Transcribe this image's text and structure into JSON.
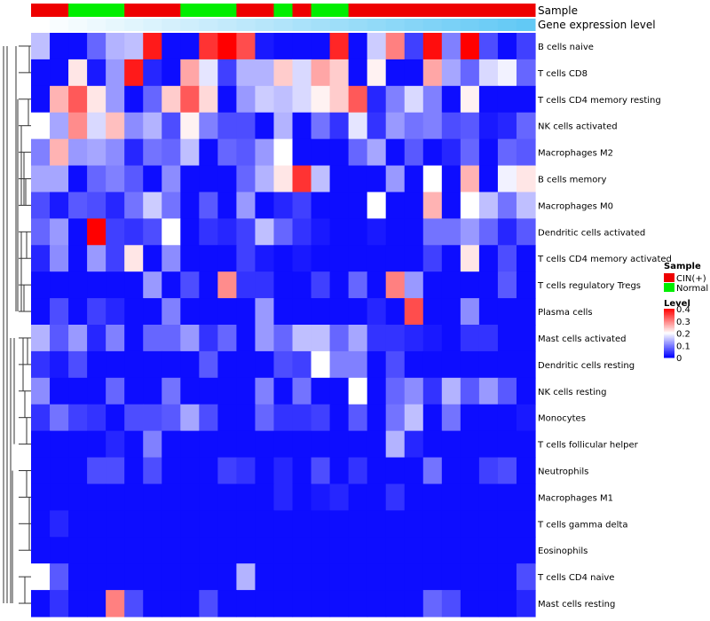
{
  "chart_data": {
    "type": "heatmap",
    "title": "",
    "annotation_tracks": [
      "Sample",
      "Gene expression level"
    ],
    "sample_groups": [
      "CIN(+)",
      "CIN(+)",
      "Normal",
      "Normal",
      "Normal",
      "CIN(+)",
      "CIN(+)",
      "CIN(+)",
      "Normal",
      "Normal",
      "Normal",
      "CIN(+)",
      "CIN(+)",
      "Normal",
      "CIN(+)",
      "Normal",
      "Normal",
      "CIN(+)",
      "CIN(+)",
      "CIN(+)",
      "CIN(+)",
      "CIN(+)",
      "CIN(+)",
      "CIN(+)",
      "CIN(+)",
      "CIN(+)",
      "CIN(+)"
    ],
    "gene_expression_level_gradient": [
      "#ffffff",
      "#62c9f5"
    ],
    "rows": [
      "B cells naive",
      "T cells CD8",
      "T cells CD4 memory resting",
      "NK cells activated",
      "Macrophages M2",
      "B cells memory",
      "Macrophages M0",
      "Dendritic cells activated",
      "T cells CD4 memory activated",
      "T cells regulatory  Tregs",
      "Plasma cells",
      "Mast cells activated",
      "Dendritic cells resting",
      "NK cells resting",
      "Monocytes",
      "T cells follicular helper",
      "Neutrophils",
      "Macrophages M1",
      "T cells gamma delta",
      "Eosinophils",
      "T cells CD4 naive",
      "Mast cells resting"
    ],
    "values": [
      [
        0.15,
        0.01,
        0.01,
        0.08,
        0.14,
        0.15,
        0.38,
        0.01,
        0.01,
        0.36,
        0.4,
        0.34,
        0.02,
        0.01,
        0.01,
        0.01,
        0.37,
        0.01,
        0.16,
        0.3,
        0.05,
        0.39,
        0.1,
        0.4,
        0.06,
        0.01,
        0.05
      ],
      [
        0.01,
        0.01,
        0.22,
        0.02,
        0.12,
        0.38,
        0.03,
        0.01,
        0.27,
        0.18,
        0.05,
        0.14,
        0.14,
        0.24,
        0.17,
        0.27,
        0.24,
        0.01,
        0.21,
        0.01,
        0.01,
        0.27,
        0.13,
        0.08,
        0.17,
        0.19,
        0.08
      ],
      [
        0.01,
        0.26,
        0.33,
        0.22,
        0.12,
        0.01,
        0.08,
        0.24,
        0.33,
        0.23,
        0.01,
        0.12,
        0.16,
        0.15,
        0.17,
        0.21,
        0.24,
        0.33,
        0.03,
        0.1,
        0.17,
        0.1,
        0.01,
        0.21,
        0.01,
        0.01,
        0.01
      ],
      [
        0.2,
        0.13,
        0.29,
        0.17,
        0.25,
        0.11,
        0.14,
        0.06,
        0.21,
        0.1,
        0.06,
        0.06,
        0.01,
        0.14,
        0.01,
        0.09,
        0.04,
        0.18,
        0.04,
        0.12,
        0.09,
        0.1,
        0.06,
        0.07,
        0.02,
        0.03,
        0.08
      ],
      [
        0.1,
        0.26,
        0.12,
        0.13,
        0.11,
        0.03,
        0.09,
        0.08,
        0.15,
        0.01,
        0.08,
        0.07,
        0.12,
        0.2,
        0.01,
        0.01,
        0.01,
        0.08,
        0.13,
        0.01,
        0.07,
        0.01,
        0.03,
        0.08,
        0.01,
        0.08,
        0.07
      ],
      [
        0.13,
        0.13,
        0.01,
        0.08,
        0.1,
        0.07,
        0.01,
        0.11,
        0.01,
        0.01,
        0.01,
        0.08,
        0.14,
        0.22,
        0.36,
        0.15,
        0.01,
        0.01,
        0.01,
        0.12,
        0.01,
        0.2,
        0.01,
        0.26,
        0.01,
        0.19,
        0.22
      ],
      [
        0.06,
        0.02,
        0.07,
        0.06,
        0.03,
        0.09,
        0.16,
        0.09,
        0.01,
        0.07,
        0.01,
        0.12,
        0.01,
        0.03,
        0.05,
        0.01,
        0.01,
        0.01,
        0.2,
        0.01,
        0.01,
        0.26,
        0.01,
        0.2,
        0.15,
        0.09,
        0.15
      ],
      [
        0.08,
        0.12,
        0.01,
        0.4,
        0.05,
        0.04,
        0.06,
        0.2,
        0.01,
        0.04,
        0.03,
        0.05,
        0.15,
        0.08,
        0.04,
        0.02,
        0.01,
        0.01,
        0.02,
        0.01,
        0.01,
        0.09,
        0.09,
        0.12,
        0.08,
        0.03,
        0.07
      ],
      [
        0.03,
        0.11,
        0.01,
        0.12,
        0.05,
        0.22,
        0.01,
        0.11,
        0.01,
        0.01,
        0.01,
        0.05,
        0.02,
        0.01,
        0.02,
        0.01,
        0.01,
        0.01,
        0.01,
        0.01,
        0.01,
        0.05,
        0.01,
        0.22,
        0.01,
        0.06,
        0.01
      ],
      [
        0.01,
        0.01,
        0.01,
        0.01,
        0.01,
        0.01,
        0.12,
        0.01,
        0.06,
        0.01,
        0.29,
        0.04,
        0.04,
        0.01,
        0.01,
        0.05,
        0.01,
        0.08,
        0.01,
        0.3,
        0.12,
        0.01,
        0.01,
        0.01,
        0.01,
        0.07,
        0.01
      ],
      [
        0.01,
        0.06,
        0.01,
        0.05,
        0.03,
        0.01,
        0.01,
        0.1,
        0.01,
        0.01,
        0.01,
        0.01,
        0.12,
        0.01,
        0.01,
        0.01,
        0.01,
        0.01,
        0.03,
        0.01,
        0.34,
        0.01,
        0.01,
        0.11,
        0.01,
        0.01,
        0.01
      ],
      [
        0.14,
        0.07,
        0.12,
        0.03,
        0.1,
        0.01,
        0.08,
        0.08,
        0.12,
        0.04,
        0.08,
        0.01,
        0.12,
        0.08,
        0.15,
        0.15,
        0.08,
        0.13,
        0.04,
        0.04,
        0.03,
        0.02,
        0.01,
        0.04,
        0.04,
        0.01,
        0.01
      ],
      [
        0.04,
        0.02,
        0.06,
        0.01,
        0.01,
        0.01,
        0.01,
        0.01,
        0.01,
        0.07,
        0.01,
        0.01,
        0.01,
        0.06,
        0.05,
        0.2,
        0.1,
        0.1,
        0.01,
        0.06,
        0.01,
        0.01,
        0.01,
        0.01,
        0.01,
        0.01,
        0.01
      ],
      [
        0.11,
        0.01,
        0.01,
        0.01,
        0.08,
        0.01,
        0.01,
        0.09,
        0.01,
        0.01,
        0.01,
        0.01,
        0.1,
        0.01,
        0.09,
        0.01,
        0.01,
        0.2,
        0.01,
        0.08,
        0.11,
        0.04,
        0.14,
        0.07,
        0.12,
        0.07,
        0.01
      ],
      [
        0.04,
        0.09,
        0.05,
        0.04,
        0.01,
        0.06,
        0.06,
        0.07,
        0.13,
        0.06,
        0.01,
        0.01,
        0.08,
        0.04,
        0.04,
        0.05,
        0.01,
        0.07,
        0.01,
        0.09,
        0.15,
        0.01,
        0.09,
        0.01,
        0.01,
        0.01,
        0.02
      ],
      [
        0.01,
        0.01,
        0.01,
        0.01,
        0.03,
        0.01,
        0.1,
        0.01,
        0.01,
        0.01,
        0.01,
        0.01,
        0.01,
        0.01,
        0.01,
        0.01,
        0.01,
        0.01,
        0.01,
        0.14,
        0.03,
        0.01,
        0.01,
        0.01,
        0.01,
        0.01,
        0.01
      ],
      [
        0.01,
        0.01,
        0.01,
        0.06,
        0.06,
        0.01,
        0.06,
        0.01,
        0.01,
        0.01,
        0.05,
        0.04,
        0.01,
        0.03,
        0.01,
        0.06,
        0.01,
        0.04,
        0.01,
        0.01,
        0.01,
        0.09,
        0.01,
        0.01,
        0.05,
        0.06,
        0.01
      ],
      [
        0.01,
        0.01,
        0.01,
        0.01,
        0.01,
        0.01,
        0.01,
        0.01,
        0.01,
        0.01,
        0.01,
        0.01,
        0.01,
        0.03,
        0.01,
        0.02,
        0.03,
        0.01,
        0.01,
        0.04,
        0.01,
        0.01,
        0.01,
        0.01,
        0.01,
        0.01,
        0.01
      ],
      [
        0.01,
        0.03,
        0.01,
        0.01,
        0.01,
        0.01,
        0.01,
        0.01,
        0.01,
        0.01,
        0.01,
        0.01,
        0.01,
        0.01,
        0.01,
        0.01,
        0.01,
        0.01,
        0.01,
        0.01,
        0.01,
        0.01,
        0.01,
        0.01,
        0.01,
        0.01,
        0.01
      ],
      [
        0.01,
        0.01,
        0.01,
        0.01,
        0.01,
        0.01,
        0.01,
        0.01,
        0.01,
        0.01,
        0.01,
        0.01,
        0.01,
        0.01,
        0.01,
        0.01,
        0.01,
        0.01,
        0.01,
        0.01,
        0.01,
        0.01,
        0.01,
        0.01,
        0.01,
        0.01,
        0.01
      ],
      [
        0.2,
        0.07,
        0.01,
        0.01,
        0.01,
        0.01,
        0.01,
        0.01,
        0.01,
        0.01,
        0.01,
        0.14,
        0.01,
        0.01,
        0.01,
        0.01,
        0.01,
        0.01,
        0.01,
        0.01,
        0.01,
        0.01,
        0.01,
        0.01,
        0.01,
        0.01,
        0.06
      ],
      [
        0.01,
        0.04,
        0.01,
        0.01,
        0.3,
        0.06,
        0.01,
        0.01,
        0.01,
        0.06,
        0.01,
        0.01,
        0.01,
        0.01,
        0.01,
        0.01,
        0.01,
        0.01,
        0.01,
        0.01,
        0.01,
        0.08,
        0.06,
        0.01,
        0.01,
        0.01,
        0.03
      ]
    ],
    "color_scale": {
      "min": 0,
      "max": 0.4,
      "colors": [
        "#0000ff",
        "#ffffff",
        "#ff0000"
      ]
    },
    "legend": {
      "sample_title": "Sample",
      "sample_items": [
        {
          "label": "CIN(+)",
          "color": "#ee0000"
        },
        {
          "label": "Normal",
          "color": "#00ee00"
        }
      ],
      "level_title": "Level",
      "level_ticks": [
        "0.4",
        "0.3",
        "0.2",
        "0.1",
        "0"
      ],
      "placement": "right"
    }
  }
}
